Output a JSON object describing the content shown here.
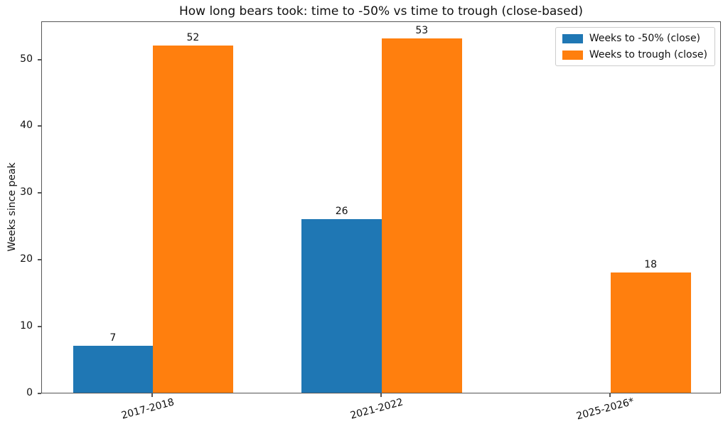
{
  "chart_data": {
    "type": "bar",
    "title": "How long bears took: time to -50% vs time to trough (close-based)",
    "categories": [
      "2017-2018",
      "2021-2022",
      "2025-2026*"
    ],
    "series": [
      {
        "name": "Weeks to -50% (close)",
        "color": "#1f77b4",
        "values": [
          7,
          26,
          null
        ]
      },
      {
        "name": "Weeks to trough (close)",
        "color": "#ff7f0e",
        "values": [
          52,
          53,
          18
        ]
      }
    ],
    "xlabel": "",
    "ylabel": "Weeks since peak",
    "ylim": [
      0,
      55.7
    ],
    "yticks": [
      0,
      10,
      20,
      30,
      40,
      50
    ],
    "bar_width": 0.35,
    "bar_value_labels": [
      7,
      26,
      52,
      53,
      18
    ],
    "grid": false,
    "legend_position": "upper right",
    "axis_color": "#555555",
    "text_color": "#111111"
  }
}
